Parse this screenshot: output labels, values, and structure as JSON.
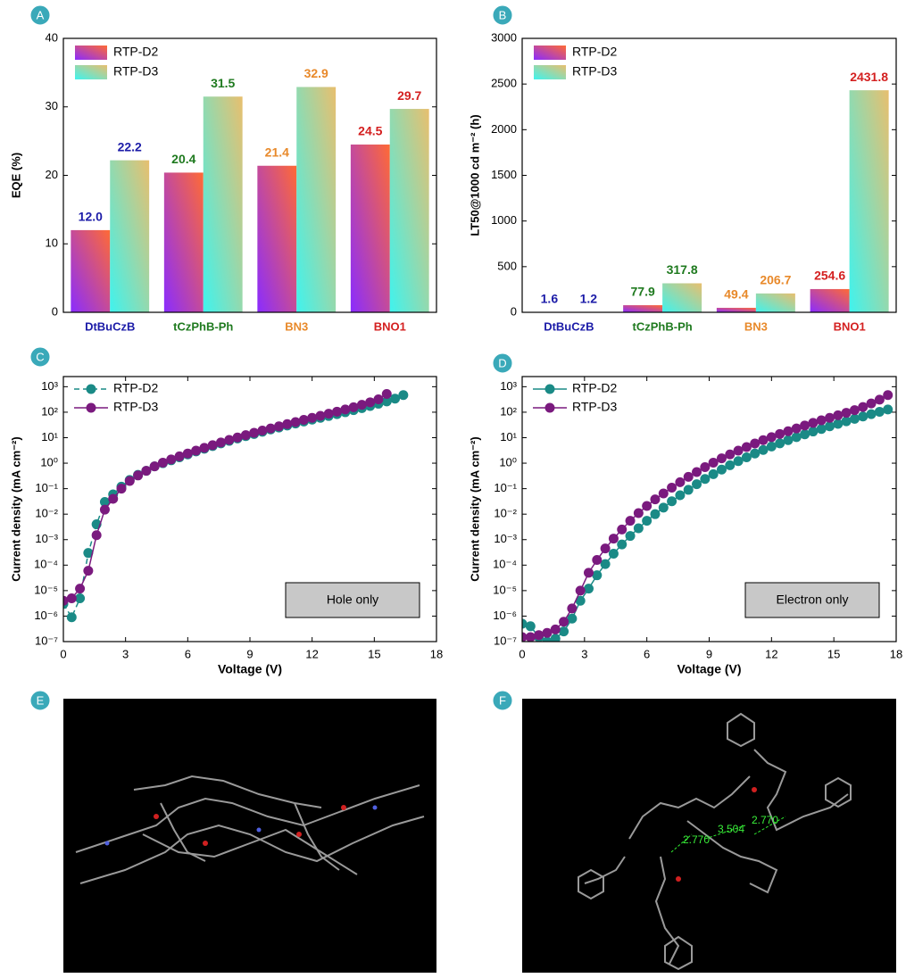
{
  "panels": [
    "A",
    "B",
    "C",
    "D",
    "E",
    "F"
  ],
  "chart_data": [
    {
      "type": "bar",
      "ylabel": "EQE (%)",
      "ylim": [
        0,
        40
      ],
      "yticks": [
        0,
        10,
        20,
        30,
        40
      ],
      "legend": "upper left",
      "categories": [
        "DtBuCzB",
        "tCzPhB-Ph",
        "BN3",
        "BNO1"
      ],
      "category_colors": [
        "#1c1ca8",
        "#1f7a1f",
        "#e8892a",
        "#d42020"
      ],
      "series": [
        {
          "name": "RTP-D2",
          "colors": [
            "#8a2cff",
            "#ff6a35"
          ],
          "values": [
            12.0,
            20.4,
            21.4,
            24.5
          ],
          "value_labels": [
            "12.0",
            "20.4",
            "21.4",
            "24.5"
          ]
        },
        {
          "name": "RTP-D3",
          "colors": [
            "#3ff3ee",
            "#e8bf6e"
          ],
          "values": [
            22.2,
            31.5,
            32.9,
            29.7
          ],
          "value_labels": [
            "22.2",
            "31.5",
            "32.9",
            "29.7"
          ]
        }
      ]
    },
    {
      "type": "bar",
      "ylabel": "LT50@1000 cd m⁻² (h)",
      "ylim": [
        0,
        3000
      ],
      "yticks": [
        0,
        500,
        1000,
        1500,
        2000,
        2500,
        3000
      ],
      "legend": "upper left",
      "categories": [
        "DtBuCzB",
        "tCzPhB-Ph",
        "BN3",
        "BNO1"
      ],
      "category_colors": [
        "#1c1ca8",
        "#1f7a1f",
        "#e8892a",
        "#d42020"
      ],
      "series": [
        {
          "name": "RTP-D2",
          "colors": [
            "#8a2cff",
            "#ff6a35"
          ],
          "values": [
            1.6,
            77.9,
            49.4,
            254.6
          ],
          "value_labels": [
            "1.6",
            "77.9",
            "49.4",
            "254.6"
          ]
        },
        {
          "name": "RTP-D3",
          "colors": [
            "#3ff3ee",
            "#e8bf6e"
          ],
          "values": [
            1.2,
            317.8,
            206.7,
            2431.8
          ],
          "value_labels": [
            "1.2",
            "317.8",
            "206.7",
            "2431.8"
          ]
        }
      ]
    },
    {
      "type": "line",
      "log_y": true,
      "xlabel": "Voltage (V)",
      "ylabel": "Current density (mA cm⁻²)",
      "annotation": "Hole only",
      "legend": "upper left",
      "xlim": [
        0,
        18
      ],
      "xticks": [
        0,
        3,
        6,
        9,
        12,
        15,
        18
      ],
      "ylim": [
        1e-07,
        2500
      ],
      "yticks": [
        {
          "value": 1e-07,
          "label": "10⁻⁷"
        },
        {
          "value": 1e-06,
          "label": "10⁻⁶"
        },
        {
          "value": 1e-05,
          "label": "10⁻⁵"
        },
        {
          "value": 0.0001,
          "label": "10⁻⁴"
        },
        {
          "value": 0.001,
          "label": "10⁻³"
        },
        {
          "value": 0.01,
          "label": "10⁻²"
        },
        {
          "value": 0.1,
          "label": "10⁻¹"
        },
        {
          "value": 1,
          "label": "10⁰"
        },
        {
          "value": 10,
          "label": "10¹"
        },
        {
          "value": 100,
          "label": "10²"
        },
        {
          "value": 1000,
          "label": "10³"
        }
      ],
      "series": [
        {
          "name": "RTP-D2",
          "color": "#1a8a86",
          "linestyle": "dashed",
          "x": [
            0,
            0.4,
            0.8,
            1.2,
            1.6,
            2,
            2.4,
            2.8,
            3.2,
            3.6,
            4,
            4.4,
            4.8,
            5.2,
            5.6,
            6,
            6.4,
            6.8,
            7.2,
            7.6,
            8,
            8.4,
            8.8,
            9.2,
            9.6,
            10,
            10.4,
            10.8,
            11.2,
            11.6,
            12,
            12.4,
            12.8,
            13.2,
            13.6,
            14,
            14.4,
            14.8,
            15.2,
            15.6,
            16,
            16.4
          ],
          "values": [
            3e-06,
            9e-07,
            5e-06,
            0.0003,
            0.004,
            0.03,
            0.06,
            0.12,
            0.22,
            0.35,
            0.5,
            0.75,
            1.0,
            1.3,
            1.7,
            2.2,
            2.9,
            3.7,
            4.7,
            6,
            7.5,
            9.3,
            11.5,
            14,
            17,
            21,
            25,
            30,
            36,
            43,
            51,
            60,
            71,
            84,
            100,
            120,
            145,
            175,
            215,
            265,
            340,
            470
          ]
        },
        {
          "name": "RTP-D3",
          "color": "#7a1a7e",
          "linestyle": "solid",
          "x": [
            0,
            0.4,
            0.8,
            1.2,
            1.6,
            2,
            2.4,
            2.8,
            3.2,
            3.6,
            4,
            4.4,
            4.8,
            5.2,
            5.6,
            6,
            6.4,
            6.8,
            7.2,
            7.6,
            8,
            8.4,
            8.8,
            9.2,
            9.6,
            10,
            10.4,
            10.8,
            11.2,
            11.6,
            12,
            12.4,
            12.8,
            13.2,
            13.6,
            14,
            14.4,
            14.8,
            15.2,
            15.6
          ],
          "values": [
            4e-06,
            5e-06,
            1.2e-05,
            6e-05,
            0.0015,
            0.015,
            0.04,
            0.1,
            0.2,
            0.33,
            0.5,
            0.75,
            1.05,
            1.4,
            1.85,
            2.4,
            3.1,
            4,
            5.1,
            6.5,
            8.2,
            10.2,
            12.6,
            15.5,
            19,
            23,
            28,
            34,
            41,
            50,
            60,
            72,
            87,
            105,
            128,
            157,
            195,
            245,
            320,
            520
          ]
        }
      ]
    },
    {
      "type": "line",
      "log_y": true,
      "xlabel": "Voltage (V)",
      "ylabel": "Current density (mA cm⁻²)",
      "annotation": "Electron only",
      "legend": "upper left",
      "xlim": [
        0,
        18
      ],
      "xticks": [
        0,
        3,
        6,
        9,
        12,
        15,
        18
      ],
      "ylim": [
        1e-07,
        2500
      ],
      "yticks": [
        {
          "value": 1e-07,
          "label": "10⁻⁷"
        },
        {
          "value": 1e-06,
          "label": "10⁻⁶"
        },
        {
          "value": 1e-05,
          "label": "10⁻⁵"
        },
        {
          "value": 0.0001,
          "label": "10⁻⁴"
        },
        {
          "value": 0.001,
          "label": "10⁻³"
        },
        {
          "value": 0.01,
          "label": "10⁻²"
        },
        {
          "value": 0.1,
          "label": "10⁻¹"
        },
        {
          "value": 1,
          "label": "10⁰"
        },
        {
          "value": 10,
          "label": "10¹"
        },
        {
          "value": 100,
          "label": "10²"
        },
        {
          "value": 1000,
          "label": "10³"
        }
      ],
      "series": [
        {
          "name": "RTP-D2",
          "color": "#1a8a86",
          "linestyle": "solid",
          "x": [
            0,
            0.4,
            0.8,
            1.2,
            1.6,
            2,
            2.4,
            2.8,
            3.2,
            3.6,
            4,
            4.4,
            4.8,
            5.2,
            5.6,
            6,
            6.4,
            6.8,
            7.2,
            7.6,
            8,
            8.4,
            8.8,
            9.2,
            9.6,
            10,
            10.4,
            10.8,
            11.2,
            11.6,
            12,
            12.4,
            12.8,
            13.2,
            13.6,
            14,
            14.4,
            14.8,
            15.2,
            15.6,
            16,
            16.4,
            16.8,
            17.2,
            17.6
          ],
          "values": [
            5e-07,
            4e-07,
            1.5e-07,
            1e-07,
            1.3e-07,
            2.5e-07,
            8e-07,
            4e-06,
            1.2e-05,
            4e-05,
            0.00011,
            0.00028,
            0.00065,
            0.0014,
            0.0028,
            0.0055,
            0.01,
            0.018,
            0.032,
            0.055,
            0.09,
            0.15,
            0.24,
            0.37,
            0.56,
            0.83,
            1.2,
            1.7,
            2.4,
            3.3,
            4.5,
            6,
            8,
            10.5,
            13.5,
            17.5,
            22,
            28,
            35,
            44,
            55,
            68,
            84,
            104,
            128
          ]
        },
        {
          "name": "RTP-D3",
          "color": "#7a1a7e",
          "linestyle": "solid",
          "x": [
            0,
            0.4,
            0.8,
            1.2,
            1.6,
            2,
            2.4,
            2.8,
            3.2,
            3.6,
            4,
            4.4,
            4.8,
            5.2,
            5.6,
            6,
            6.4,
            6.8,
            7.2,
            7.6,
            8,
            8.4,
            8.8,
            9.2,
            9.6,
            10,
            10.4,
            10.8,
            11.2,
            11.6,
            12,
            12.4,
            12.8,
            13.2,
            13.6,
            14,
            14.4,
            14.8,
            15.2,
            15.6,
            16,
            16.4,
            16.8,
            17.2,
            17.6
          ],
          "values": [
            1.5e-07,
            1.5e-07,
            1.8e-07,
            2.2e-07,
            3e-07,
            6e-07,
            2e-06,
            1e-05,
            5e-05,
            0.00016,
            0.00045,
            0.0011,
            0.0025,
            0.0055,
            0.011,
            0.021,
            0.038,
            0.065,
            0.11,
            0.18,
            0.29,
            0.45,
            0.7,
            1.05,
            1.55,
            2.2,
            3.1,
            4.3,
            5.9,
            8,
            10.5,
            14,
            18,
            23,
            30,
            38,
            48,
            60,
            76,
            95,
            120,
            160,
            220,
            310,
            470
          ]
        }
      ]
    }
  ],
  "images": {
    "distances": [
      "2.770",
      "3.504",
      "2.770"
    ]
  }
}
